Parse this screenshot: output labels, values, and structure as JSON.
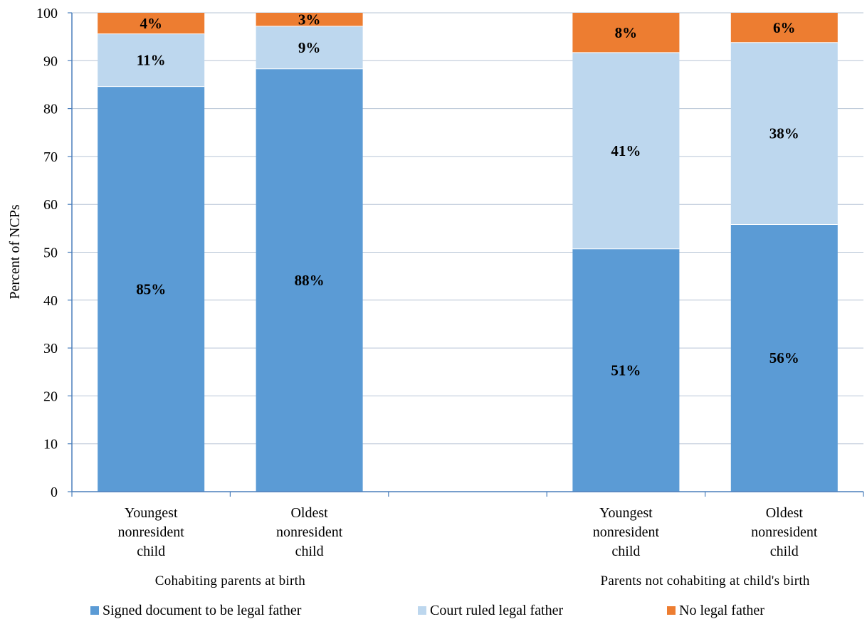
{
  "chart_data": {
    "type": "bar",
    "stacked": true,
    "ylabel": "Percent of NCPs",
    "xlabel": "",
    "ylim": [
      0,
      100
    ],
    "yticks": [
      0,
      10,
      20,
      30,
      40,
      50,
      60,
      70,
      80,
      90,
      100
    ],
    "grid": true,
    "legend_position": "bottom",
    "categories": [
      "Youngest nonresident child",
      "Oldest nonresident child",
      "",
      "Youngest nonresident child",
      "Oldest nonresident child"
    ],
    "category_lines": [
      [
        "Youngest",
        "nonresident",
        "child"
      ],
      [
        "Oldest",
        "nonresident",
        "child"
      ],
      [],
      [
        "Youngest",
        "nonresident",
        "child"
      ],
      [
        "Oldest",
        "nonresident",
        "child"
      ]
    ],
    "groups": [
      {
        "label": "Cohabiting parents at birth",
        "categories": [
          0,
          1
        ]
      },
      {
        "label": "Parents not cohabiting at child's birth",
        "categories": [
          3,
          4
        ]
      }
    ],
    "series": [
      {
        "name": "Signed document to be legal father",
        "color": "#5b9bd5",
        "values": [
          84.6,
          88.3,
          null,
          50.7,
          55.8
        ],
        "labels": [
          "85%",
          "88%",
          "",
          "51%",
          "56%"
        ]
      },
      {
        "name": "Court ruled legal father",
        "color": "#bdd7ee",
        "values": [
          11.0,
          8.9,
          null,
          41.0,
          38.0
        ],
        "labels": [
          "11%",
          "9%",
          "",
          "41%",
          "38%"
        ]
      },
      {
        "name": "No legal father",
        "color": "#ed7d31",
        "values": [
          4.4,
          2.8,
          null,
          8.3,
          6.2
        ],
        "labels": [
          "4%",
          "3%",
          "",
          "8%",
          "6%"
        ]
      }
    ]
  }
}
